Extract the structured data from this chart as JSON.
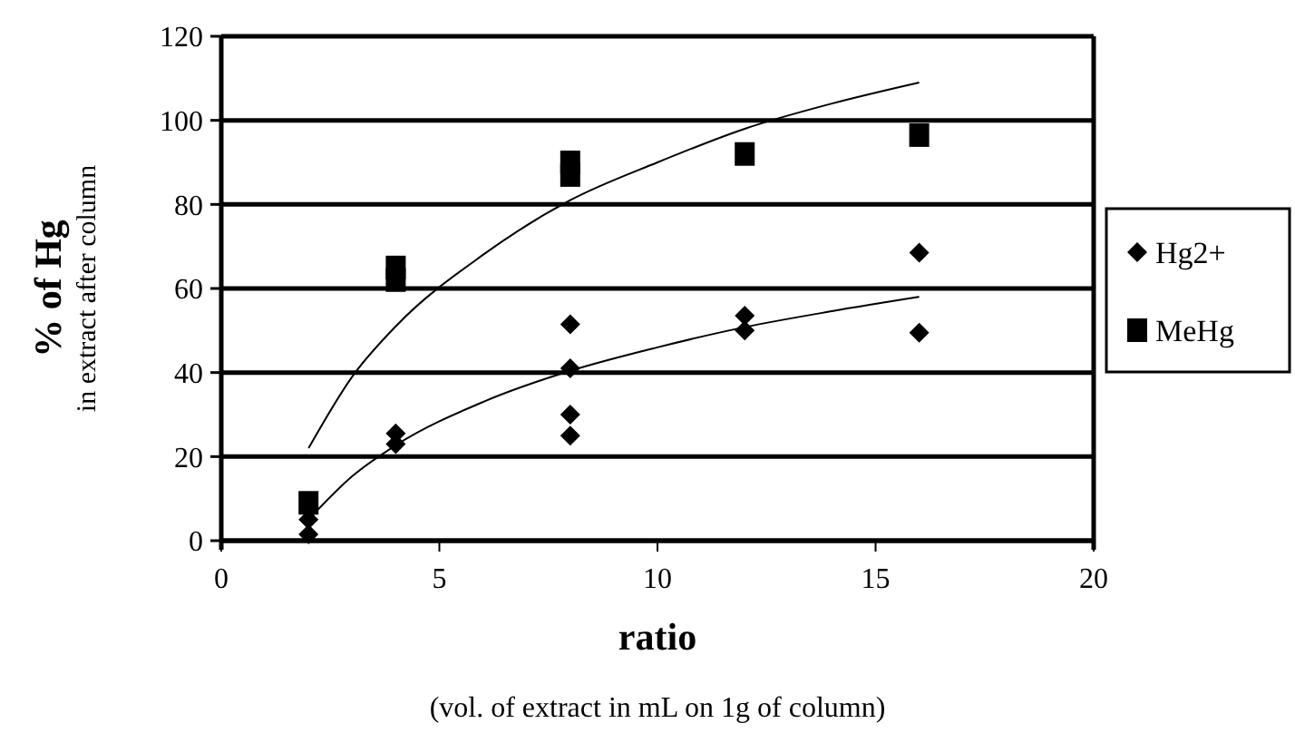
{
  "chart_data": {
    "type": "scatter",
    "xlabel": "ratio\n(vol. of extract in mL on 1g of column)",
    "ylabel": "% of Hg\nin extract after column",
    "xlim": [
      0,
      20
    ],
    "xticks": [
      0,
      5,
      10,
      15,
      20
    ],
    "ylim": [
      0,
      120
    ],
    "yticks": [
      0,
      20,
      40,
      60,
      80,
      100,
      120
    ],
    "grid": "y",
    "legend": "right",
    "series": [
      {
        "name": "Hg2+",
        "color": "#000000",
        "marker": "diamond",
        "x": [
          2,
          2,
          4,
          4,
          8,
          8,
          8,
          8,
          12,
          12,
          16,
          16
        ],
        "values": [
          1.5,
          5,
          23,
          25.5,
          51.5,
          41,
          30,
          25,
          53.5,
          50,
          68.5,
          49.5
        ]
      },
      {
        "name": "MeHg",
        "color": "#000000",
        "marker": "square",
        "x": [
          2,
          4,
          4,
          8,
          8,
          12,
          16
        ],
        "values": [
          9,
          62,
          65,
          87,
          90,
          92,
          96.5
        ]
      },
      {
        "type": "line",
        "color": "#000000",
        "marker": "none",
        "x": [
          2,
          3,
          4,
          6,
          8,
          10,
          12,
          14,
          16
        ],
        "values": [
          5,
          15.3,
          22.7,
          33,
          40.4,
          46,
          50.8,
          54.6,
          58
        ]
      },
      {
        "type": "line",
        "color": "#000000",
        "marker": "none",
        "x": [
          2,
          3,
          4,
          6,
          8,
          10,
          12,
          14,
          16
        ],
        "values": [
          22,
          39,
          51,
          68,
          81,
          90,
          98,
          104,
          109
        ]
      }
    ]
  }
}
